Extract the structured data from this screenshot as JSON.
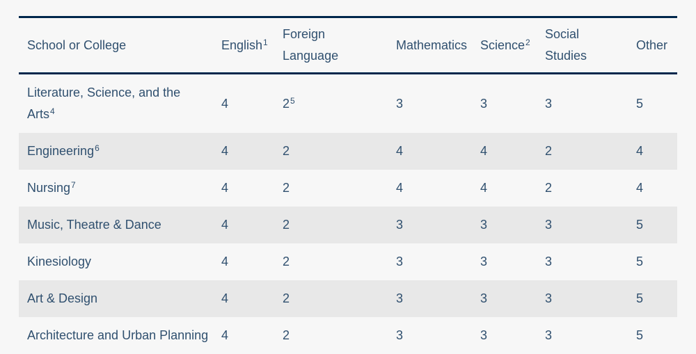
{
  "colors": {
    "page-bg": "#f7f7f7",
    "stripe-bg": "#e8e8e8",
    "border-navy": "#00274c",
    "text-navy": "#30506f"
  },
  "table": {
    "columns": [
      {
        "segments": [
          {
            "t": "School or College"
          }
        ]
      },
      {
        "segments": [
          {
            "t": "English"
          },
          {
            "t": "1",
            "sup": true
          }
        ]
      },
      {
        "segments": [
          {
            "t": "Foreign"
          },
          {
            "br": true
          },
          {
            "t": "Language"
          }
        ]
      },
      {
        "segments": [
          {
            "t": "Mathematics"
          }
        ]
      },
      {
        "segments": [
          {
            "t": "Science"
          },
          {
            "t": "2",
            "sup": true
          }
        ]
      },
      {
        "segments": [
          {
            "t": "Social"
          },
          {
            "br": true
          },
          {
            "t": "Studies"
          }
        ]
      },
      {
        "segments": [
          {
            "t": "Other"
          }
        ]
      }
    ],
    "rows": [
      {
        "cells": [
          {
            "segments": [
              {
                "t": "Literature, Science, and the"
              },
              {
                "br": true
              },
              {
                "t": "Arts"
              },
              {
                "t": "4",
                "sup": true
              }
            ]
          },
          {
            "segments": [
              {
                "t": "4"
              }
            ]
          },
          {
            "segments": [
              {
                "t": "2"
              },
              {
                "t": "5",
                "sup": true
              }
            ]
          },
          {
            "segments": [
              {
                "t": "3"
              }
            ]
          },
          {
            "segments": [
              {
                "t": "3"
              }
            ]
          },
          {
            "segments": [
              {
                "t": "3"
              }
            ]
          },
          {
            "segments": [
              {
                "t": "5"
              }
            ]
          }
        ]
      },
      {
        "cells": [
          {
            "segments": [
              {
                "t": "Engineering"
              },
              {
                "t": "6",
                "sup": true
              }
            ]
          },
          {
            "segments": [
              {
                "t": "4"
              }
            ]
          },
          {
            "segments": [
              {
                "t": "2"
              }
            ]
          },
          {
            "segments": [
              {
                "t": "4"
              }
            ]
          },
          {
            "segments": [
              {
                "t": "4"
              }
            ]
          },
          {
            "segments": [
              {
                "t": "2"
              }
            ]
          },
          {
            "segments": [
              {
                "t": "4"
              }
            ]
          }
        ]
      },
      {
        "cells": [
          {
            "segments": [
              {
                "t": "Nursing"
              },
              {
                "t": "7",
                "sup": true
              }
            ]
          },
          {
            "segments": [
              {
                "t": "4"
              }
            ]
          },
          {
            "segments": [
              {
                "t": "2"
              }
            ]
          },
          {
            "segments": [
              {
                "t": "4"
              }
            ]
          },
          {
            "segments": [
              {
                "t": "4"
              }
            ]
          },
          {
            "segments": [
              {
                "t": "2"
              }
            ]
          },
          {
            "segments": [
              {
                "t": "4"
              }
            ]
          }
        ]
      },
      {
        "cells": [
          {
            "segments": [
              {
                "t": "Music, Theatre & Dance"
              }
            ]
          },
          {
            "segments": [
              {
                "t": "4"
              }
            ]
          },
          {
            "segments": [
              {
                "t": "2"
              }
            ]
          },
          {
            "segments": [
              {
                "t": "3"
              }
            ]
          },
          {
            "segments": [
              {
                "t": "3"
              }
            ]
          },
          {
            "segments": [
              {
                "t": "3"
              }
            ]
          },
          {
            "segments": [
              {
                "t": "5"
              }
            ]
          }
        ]
      },
      {
        "cells": [
          {
            "segments": [
              {
                "t": "Kinesiology"
              }
            ]
          },
          {
            "segments": [
              {
                "t": "4"
              }
            ]
          },
          {
            "segments": [
              {
                "t": "2"
              }
            ]
          },
          {
            "segments": [
              {
                "t": "3"
              }
            ]
          },
          {
            "segments": [
              {
                "t": "3"
              }
            ]
          },
          {
            "segments": [
              {
                "t": "3"
              }
            ]
          },
          {
            "segments": [
              {
                "t": "5"
              }
            ]
          }
        ]
      },
      {
        "cells": [
          {
            "segments": [
              {
                "t": "Art & Design"
              }
            ]
          },
          {
            "segments": [
              {
                "t": "4"
              }
            ]
          },
          {
            "segments": [
              {
                "t": "2"
              }
            ]
          },
          {
            "segments": [
              {
                "t": "3"
              }
            ]
          },
          {
            "segments": [
              {
                "t": "3"
              }
            ]
          },
          {
            "segments": [
              {
                "t": "3"
              }
            ]
          },
          {
            "segments": [
              {
                "t": "5"
              }
            ]
          }
        ]
      },
      {
        "cells": [
          {
            "segments": [
              {
                "t": "Architecture and Urban Planning"
              }
            ]
          },
          {
            "segments": [
              {
                "t": "4"
              }
            ]
          },
          {
            "segments": [
              {
                "t": "2"
              }
            ]
          },
          {
            "segments": [
              {
                "t": "3"
              }
            ]
          },
          {
            "segments": [
              {
                "t": "3"
              }
            ]
          },
          {
            "segments": [
              {
                "t": "3"
              }
            ]
          },
          {
            "segments": [
              {
                "t": "5"
              }
            ]
          }
        ]
      }
    ]
  }
}
